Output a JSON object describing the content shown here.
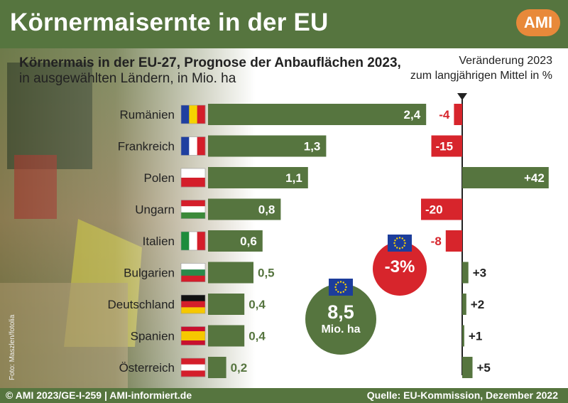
{
  "header": {
    "title": "Körnermaisernte in der EU",
    "logo_text": "AMI"
  },
  "subtitle": {
    "line1": "Körnermais in der EU-27, Prognose der Anbauflächen 2023,",
    "line2": "in ausgewählten Ländern, in Mio. ha"
  },
  "right_note": {
    "line1": "Veränderung 2023",
    "line2": "zum langjährigen Mittel in %"
  },
  "eu_total": {
    "value": "8,5",
    "unit": "Mio. ha"
  },
  "eu_change": {
    "value": "-3%"
  },
  "photo_credit": "Foto: Maszlen/fotolia",
  "footer": {
    "left": "© AMI 2023/GE-I-259 | AMI-informiert.de",
    "right": "Quelle: EU-Kommission, Dezember 2022"
  },
  "colors": {
    "green": "#56753f",
    "red": "#d7252c",
    "orange": "#e8893a"
  },
  "chart_data": [
    {
      "type": "bar",
      "orientation": "horizontal",
      "title": "Körnermais in der EU-27, Prognose der Anbauflächen 2023, in ausgewählten Ländern, in Mio. ha",
      "categories": [
        "Rumänien",
        "Frankreich",
        "Polen",
        "Ungarn",
        "Italien",
        "Bulgarien",
        "Deutschland",
        "Spanien",
        "Österreich"
      ],
      "values": [
        2.4,
        1.3,
        1.1,
        0.8,
        0.6,
        0.5,
        0.4,
        0.4,
        0.2
      ],
      "value_labels": [
        "2,4",
        "1,3",
        "1,1",
        "0,8",
        "0,6",
        "0,5",
        "0,4",
        "0,4",
        "0,2"
      ],
      "flags": [
        "romania",
        "france",
        "poland",
        "hungary",
        "italy",
        "bulgaria",
        "germany",
        "spain",
        "austria"
      ],
      "color": "#56753f"
    },
    {
      "type": "bar",
      "orientation": "horizontal",
      "title": "Veränderung 2023 zum langjährigen Mittel in %",
      "categories": [
        "Rumänien",
        "Frankreich",
        "Polen",
        "Ungarn",
        "Italien",
        "Bulgarien",
        "Deutschland",
        "Spanien",
        "Österreich"
      ],
      "values": [
        -4,
        -15,
        42,
        -20,
        -8,
        3,
        2,
        1,
        5
      ],
      "value_labels": [
        "-4",
        "-15",
        "+42",
        "-20",
        "-8",
        "+3",
        "+2",
        "+1",
        "+5"
      ],
      "positive_color": "#56753f",
      "negative_color": "#d7252c"
    }
  ]
}
